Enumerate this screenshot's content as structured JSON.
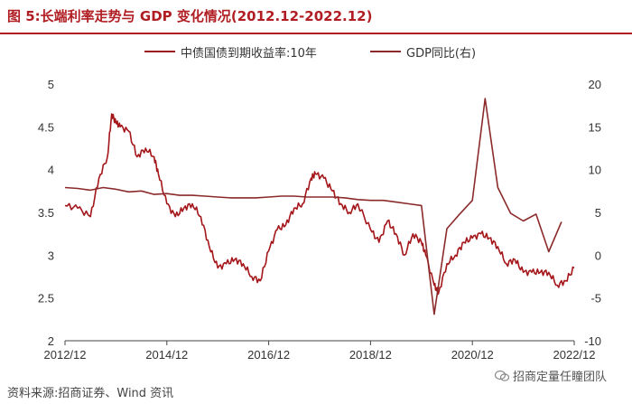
{
  "header": {
    "title": "图 5:长端利率走势与 GDP 变化情况(2012.12-2022.12)"
  },
  "footer": {
    "source": "资料来源:招商证券、Wind 资讯",
    "watermark": "招商定量任瞳团队"
  },
  "colors": {
    "accent": "#b01d22",
    "yield_line": "#a4161a",
    "gdp_line": "#8b2a2a"
  },
  "chart_data": {
    "type": "line",
    "title": "",
    "xlabel": "",
    "ylabel": "",
    "x_ticks": [
      "2012/12",
      "2014/12",
      "2016/12",
      "2018/12",
      "2020/12",
      "2022/12"
    ],
    "x_range": [
      "2012/12",
      "2022/12"
    ],
    "y_left": {
      "range": [
        2.0,
        5.0
      ],
      "ticks": [
        "2",
        "2.5",
        "3",
        "3.5",
        "4",
        "4.5",
        "5"
      ]
    },
    "y_right": {
      "range": [
        -10,
        20
      ],
      "ticks": [
        "-10",
        "-5",
        "0",
        "5",
        "10",
        "15",
        "20"
      ]
    },
    "grid": false,
    "legend_position": "top",
    "series": [
      {
        "name": "中债国债到期收益率:10年",
        "axis": "left",
        "points": [
          [
            "2012/12",
            3.58
          ],
          [
            "2013/03",
            3.55
          ],
          [
            "2013/06",
            3.45
          ],
          [
            "2013/08",
            3.9
          ],
          [
            "2013/10",
            4.15
          ],
          [
            "2013/11",
            4.65
          ],
          [
            "2013/12",
            4.55
          ],
          [
            "2014/01",
            4.5
          ],
          [
            "2014/03",
            4.45
          ],
          [
            "2014/05",
            4.15
          ],
          [
            "2014/07",
            4.25
          ],
          [
            "2014/09",
            4.15
          ],
          [
            "2014/10",
            3.95
          ],
          [
            "2014/12",
            3.6
          ],
          [
            "2015/02",
            3.45
          ],
          [
            "2015/04",
            3.55
          ],
          [
            "2015/06",
            3.6
          ],
          [
            "2015/08",
            3.45
          ],
          [
            "2015/10",
            3.1
          ],
          [
            "2015/12",
            2.85
          ],
          [
            "2016/02",
            2.9
          ],
          [
            "2016/04",
            2.95
          ],
          [
            "2016/06",
            2.9
          ],
          [
            "2016/08",
            2.75
          ],
          [
            "2016/10",
            2.7
          ],
          [
            "2016/12",
            3.05
          ],
          [
            "2017/02",
            3.3
          ],
          [
            "2017/04",
            3.35
          ],
          [
            "2017/06",
            3.55
          ],
          [
            "2017/08",
            3.6
          ],
          [
            "2017/10",
            3.9
          ],
          [
            "2017/11",
            3.95
          ],
          [
            "2018/01",
            3.9
          ],
          [
            "2018/03",
            3.75
          ],
          [
            "2018/05",
            3.6
          ],
          [
            "2018/07",
            3.5
          ],
          [
            "2018/09",
            3.6
          ],
          [
            "2018/12",
            3.3
          ],
          [
            "2019/02",
            3.15
          ],
          [
            "2019/04",
            3.4
          ],
          [
            "2019/06",
            3.25
          ],
          [
            "2019/08",
            3.0
          ],
          [
            "2019/10",
            3.25
          ],
          [
            "2019/12",
            3.15
          ],
          [
            "2020/01",
            3.0
          ],
          [
            "2020/03",
            2.65
          ],
          [
            "2020/04",
            2.55
          ],
          [
            "2020/06",
            2.9
          ],
          [
            "2020/08",
            3.0
          ],
          [
            "2020/10",
            3.15
          ],
          [
            "2020/12",
            3.2
          ],
          [
            "2021/02",
            3.25
          ],
          [
            "2021/04",
            3.2
          ],
          [
            "2021/06",
            3.1
          ],
          [
            "2021/08",
            2.9
          ],
          [
            "2021/10",
            2.95
          ],
          [
            "2021/12",
            2.8
          ],
          [
            "2022/02",
            2.8
          ],
          [
            "2022/04",
            2.8
          ],
          [
            "2022/06",
            2.8
          ],
          [
            "2022/08",
            2.65
          ],
          [
            "2022/10",
            2.7
          ],
          [
            "2022/12",
            2.85
          ]
        ]
      },
      {
        "name": "GDP同比(右)",
        "axis": "right",
        "points": [
          [
            "2012/12",
            7.9
          ],
          [
            "2013/03",
            7.8
          ],
          [
            "2013/06",
            7.6
          ],
          [
            "2013/09",
            7.9
          ],
          [
            "2013/12",
            7.7
          ],
          [
            "2014/03",
            7.4
          ],
          [
            "2014/06",
            7.5
          ],
          [
            "2014/09",
            7.1
          ],
          [
            "2014/12",
            7.2
          ],
          [
            "2015/03",
            7.0
          ],
          [
            "2015/06",
            7.0
          ],
          [
            "2015/09",
            6.9
          ],
          [
            "2015/12",
            6.8
          ],
          [
            "2016/03",
            6.7
          ],
          [
            "2016/06",
            6.7
          ],
          [
            "2016/09",
            6.7
          ],
          [
            "2016/12",
            6.8
          ],
          [
            "2017/03",
            6.9
          ],
          [
            "2017/06",
            6.9
          ],
          [
            "2017/09",
            6.8
          ],
          [
            "2017/12",
            6.8
          ],
          [
            "2018/03",
            6.8
          ],
          [
            "2018/06",
            6.7
          ],
          [
            "2018/09",
            6.5
          ],
          [
            "2018/12",
            6.4
          ],
          [
            "2019/03",
            6.4
          ],
          [
            "2019/06",
            6.2
          ],
          [
            "2019/09",
            6.0
          ],
          [
            "2019/12",
            5.8
          ],
          [
            "2020/03",
            -6.9
          ],
          [
            "2020/06",
            3.1
          ],
          [
            "2020/09",
            4.8
          ],
          [
            "2020/12",
            6.4
          ],
          [
            "2021/03",
            18.3
          ],
          [
            "2021/06",
            7.9
          ],
          [
            "2021/09",
            4.9
          ],
          [
            "2021/12",
            4.0
          ],
          [
            "2022/03",
            4.8
          ],
          [
            "2022/06",
            0.4
          ],
          [
            "2022/09",
            3.9
          ]
        ]
      }
    ]
  }
}
